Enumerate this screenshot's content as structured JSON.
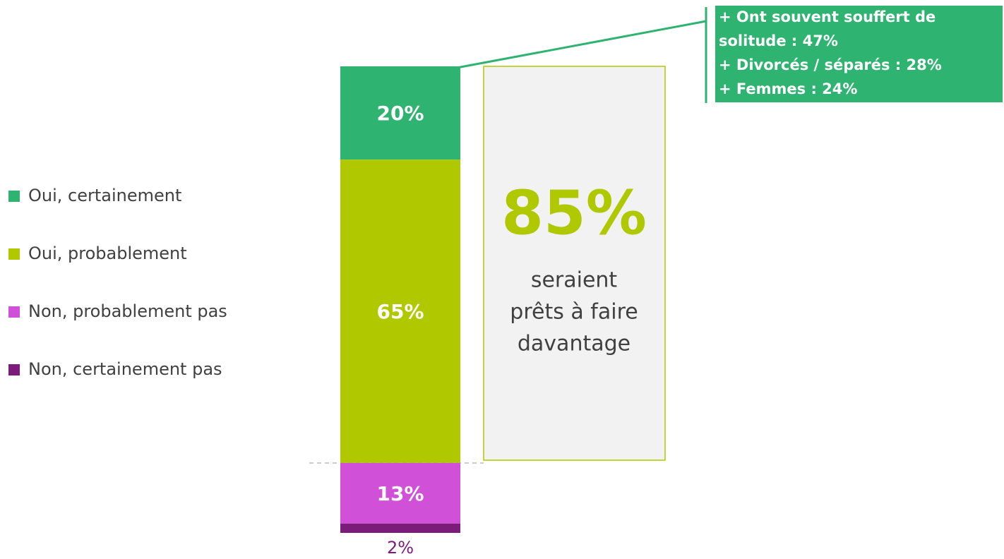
{
  "chart_data": {
    "type": "stacked_bar",
    "categories": [
      null
    ],
    "series": [
      {
        "name": "Oui, certainement",
        "color": "#2fb371",
        "values": [
          20
        ],
        "value_labels": [
          "20%"
        ]
      },
      {
        "name": "Oui, probablement",
        "color": "#b0c800",
        "values": [
          65
        ],
        "value_labels": [
          "65%"
        ]
      },
      {
        "name": "Non, probablement pas",
        "color": "#d050d8",
        "values": [
          13
        ],
        "value_labels": [
          "13%"
        ]
      },
      {
        "name": "Non, certainement pas",
        "color": "#7b1c7a",
        "values": [
          2
        ],
        "value_labels": [
          "2%"
        ]
      }
    ],
    "highlight": {
      "label": "85%",
      "lines": [
        "seraient",
        "prêts à faire",
        "davantage"
      ]
    },
    "callout": {
      "lines": [
        "+ Ont souvent souffert de",
        "solitude : 47%",
        "+ Divorcés / séparés : 28%",
        "+ Femmes : 24%"
      ]
    }
  }
}
